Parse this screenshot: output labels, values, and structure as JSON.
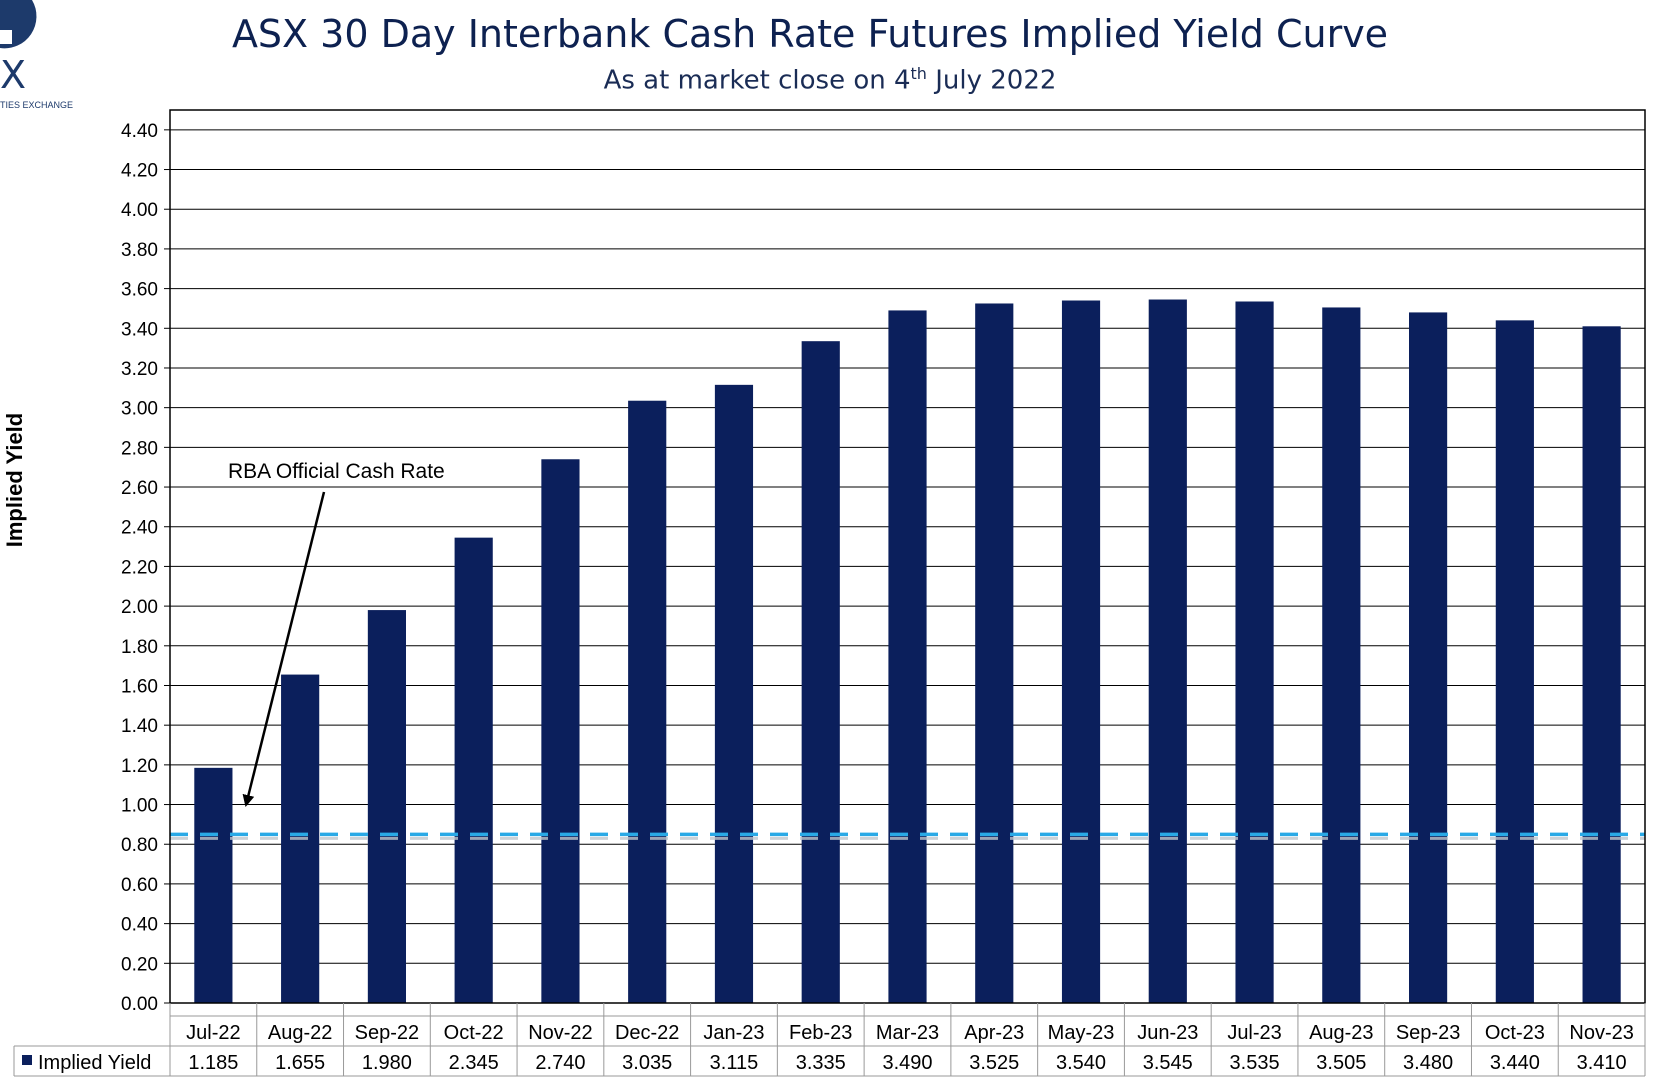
{
  "logo": {
    "mark": "X",
    "caption": "TIES EXCHANGE"
  },
  "header": {
    "title": "ASX 30 Day Interbank Cash Rate Futures Implied Yield Curve",
    "subtitle_prefix": "As at market close on 4",
    "subtitle_sup": "th",
    "subtitle_suffix": " July 2022"
  },
  "chart_data": {
    "type": "bar",
    "title": "ASX 30 Day Interbank Cash Rate Futures Implied Yield Curve",
    "subtitle": "As at market close on 4th July 2022",
    "xlabel": "",
    "ylabel": "Implied Yield",
    "ylim": [
      0,
      4.5
    ],
    "yticks": [
      "0.00",
      "0.20",
      "0.40",
      "0.60",
      "0.80",
      "1.00",
      "1.20",
      "1.40",
      "1.60",
      "1.80",
      "2.00",
      "2.20",
      "2.40",
      "2.60",
      "2.80",
      "3.00",
      "3.20",
      "3.40",
      "3.60",
      "3.80",
      "4.00",
      "4.20",
      "4.40"
    ],
    "grid": true,
    "categories": [
      "Jul-22",
      "Aug-22",
      "Sep-22",
      "Oct-22",
      "Nov-22",
      "Dec-22",
      "Jan-23",
      "Feb-23",
      "Mar-23",
      "Apr-23",
      "May-23",
      "Jun-23",
      "Jul-23",
      "Aug-23",
      "Sep-23",
      "Oct-23",
      "Nov-23"
    ],
    "series": [
      {
        "name": "Implied Yield",
        "values": [
          1.185,
          1.655,
          1.98,
          2.345,
          2.74,
          3.035,
          3.115,
          3.335,
          3.49,
          3.525,
          3.54,
          3.545,
          3.535,
          3.505,
          3.48,
          3.44,
          3.41
        ],
        "labels": [
          "1.185",
          "1.655",
          "1.980",
          "2.345",
          "2.740",
          "3.035",
          "3.115",
          "3.335",
          "3.490",
          "3.525",
          "3.540",
          "3.545",
          "3.535",
          "3.505",
          "3.480",
          "3.440",
          "3.410"
        ],
        "color": "#0b1f5c"
      }
    ],
    "reference_line": {
      "value": 0.85,
      "color": "#29a9e6",
      "style": "dashed"
    },
    "annotation": {
      "text": "RBA Official Cash Rate",
      "points_to_value": 1.0
    },
    "data_table": {
      "legend_label": "Implied Yield"
    }
  }
}
